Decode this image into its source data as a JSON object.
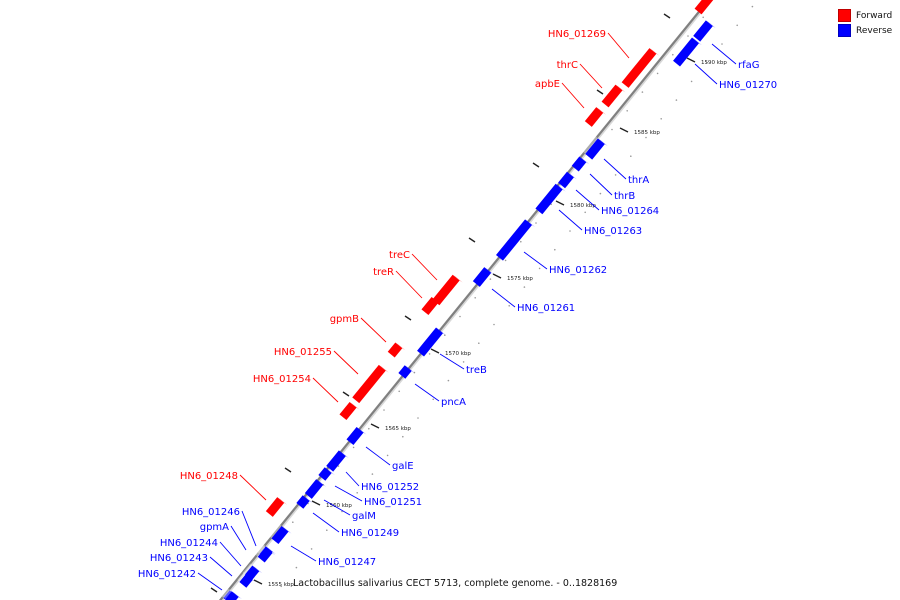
{
  "legend": [
    {
      "label": "Forward",
      "color": "#ff0000"
    },
    {
      "label": "Reverse",
      "color": "#0000ff"
    }
  ],
  "caption": "Lactobacillus salivarius CECT 5713, complete genome. - 0..1828169",
  "colors": {
    "forward": "#ff0000",
    "reverse": "#0000ff",
    "backbone": "#808080"
  },
  "ticks": [
    "1555 kbp",
    "1560 kbp",
    "1565 kbp",
    "1570 kbp",
    "1575 kbp",
    "1580 kbp",
    "1585 kbp",
    "1590 kbp"
  ],
  "genes": [
    {
      "name": "HN6_01269",
      "strand": "forward"
    },
    {
      "name": "thrC",
      "strand": "forward"
    },
    {
      "name": "apbE",
      "strand": "forward"
    },
    {
      "name": "treC",
      "strand": "forward"
    },
    {
      "name": "treR",
      "strand": "forward"
    },
    {
      "name": "gpmB",
      "strand": "forward"
    },
    {
      "name": "HN6_01255",
      "strand": "forward"
    },
    {
      "name": "HN6_01254",
      "strand": "forward"
    },
    {
      "name": "HN6_01248",
      "strand": "forward"
    },
    {
      "name": "rfaG",
      "strand": "reverse"
    },
    {
      "name": "HN6_01270",
      "strand": "reverse"
    },
    {
      "name": "thrA",
      "strand": "reverse"
    },
    {
      "name": "thrB",
      "strand": "reverse"
    },
    {
      "name": "HN6_01264",
      "strand": "reverse"
    },
    {
      "name": "HN6_01263",
      "strand": "reverse"
    },
    {
      "name": "HN6_01262",
      "strand": "reverse"
    },
    {
      "name": "HN6_01261",
      "strand": "reverse"
    },
    {
      "name": "treB",
      "strand": "reverse"
    },
    {
      "name": "pncA",
      "strand": "reverse"
    },
    {
      "name": "galE",
      "strand": "reverse"
    },
    {
      "name": "HN6_01252",
      "strand": "reverse"
    },
    {
      "name": "HN6_01251",
      "strand": "reverse"
    },
    {
      "name": "galM",
      "strand": "reverse"
    },
    {
      "name": "HN6_01249",
      "strand": "reverse"
    },
    {
      "name": "HN6_01247",
      "strand": "reverse"
    },
    {
      "name": "HN6_01246",
      "strand": "reverse"
    },
    {
      "name": "gpmA",
      "strand": "reverse"
    },
    {
      "name": "HN6_01244",
      "strand": "reverse"
    },
    {
      "name": "HN6_01243",
      "strand": "reverse"
    },
    {
      "name": "HN6_01242",
      "strand": "reverse"
    }
  ]
}
